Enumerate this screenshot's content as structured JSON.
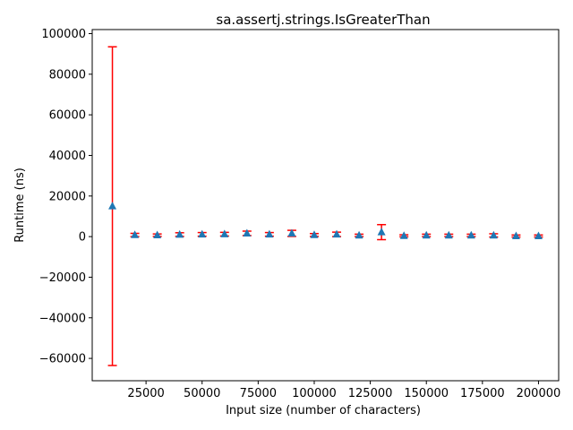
{
  "chart_data": {
    "type": "scatter",
    "title": "sa.assertj.strings.IsGreaterThan",
    "xlabel": "Input size (number of characters)",
    "ylabel": "Runtime (ns)",
    "xlim": [
      1000,
      209000
    ],
    "ylim": [
      -71000,
      102000
    ],
    "x_ticks": [
      25000,
      50000,
      75000,
      100000,
      125000,
      150000,
      175000,
      200000
    ],
    "x_tick_labels": [
      "25000",
      "50000",
      "75000",
      "100000",
      "125000",
      "150000",
      "175000",
      "200000"
    ],
    "y_ticks": [
      -60000,
      -40000,
      -20000,
      0,
      20000,
      40000,
      60000,
      80000,
      100000
    ],
    "y_tick_labels": [
      "−60000",
      "−40000",
      "−20000",
      "0",
      "20000",
      "40000",
      "60000",
      "80000",
      "100000"
    ],
    "marker": "triangle",
    "marker_color": "#1f77b4",
    "errorbar_color": "#ff0000",
    "series": [
      {
        "x": [
          10000,
          20000,
          30000,
          40000,
          50000,
          60000,
          70000,
          80000,
          90000,
          100000,
          110000,
          120000,
          130000,
          140000,
          150000,
          160000,
          170000,
          180000,
          190000,
          200000
        ],
        "y": [
          15000,
          800,
          700,
          1000,
          1100,
          1200,
          1600,
          1100,
          1600,
          800,
          1100,
          600,
          2200,
          400,
          600,
          600,
          600,
          600,
          300,
          300
        ],
        "yerr": [
          78500,
          800,
          600,
          900,
          900,
          900,
          1100,
          900,
          1500,
          700,
          1100,
          600,
          3700,
          500,
          600,
          600,
          600,
          800,
          500,
          500
        ]
      }
    ]
  }
}
